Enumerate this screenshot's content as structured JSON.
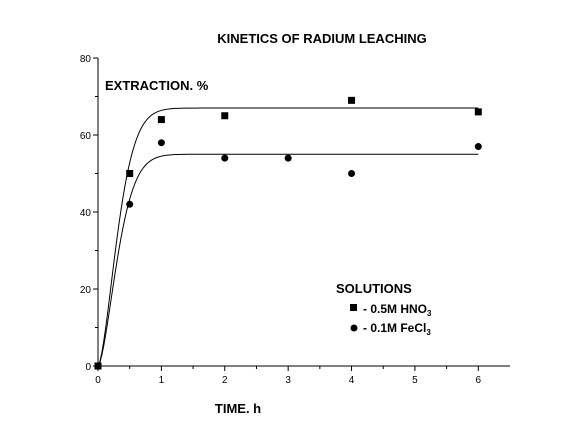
{
  "chart_data": {
    "type": "scatter",
    "title": "KINETICS OF RADIUM LEACHING",
    "xlabel": "TIME. h",
    "ylabel": "EXTRACTION. %",
    "xlim": [
      0,
      6.5
    ],
    "ylim": [
      0,
      80
    ],
    "x_ticks": [
      0,
      1,
      2,
      3,
      4,
      5,
      6
    ],
    "y_ticks": [
      0,
      20,
      40,
      60,
      80
    ],
    "grid": false,
    "legend_title": "SOLUTIONS",
    "legend_position": "bottom-right",
    "series": [
      {
        "name": "0.5M HNO3",
        "legend_label": "-   0.5M HNO",
        "legend_sub": "3",
        "marker": "square",
        "x": [
          0,
          0.5,
          1,
          2,
          4,
          6
        ],
        "y": [
          0,
          50,
          64,
          65,
          69,
          66
        ],
        "fit_plateau": 67
      },
      {
        "name": "0.1M FeCl3",
        "legend_label": "-   0.1M FeCl",
        "legend_sub": "3",
        "marker": "circle",
        "x": [
          0,
          0.5,
          1,
          2,
          3,
          4,
          6
        ],
        "y": [
          0,
          42,
          58,
          54,
          54,
          50,
          57
        ],
        "fit_plateau": 55
      }
    ]
  }
}
